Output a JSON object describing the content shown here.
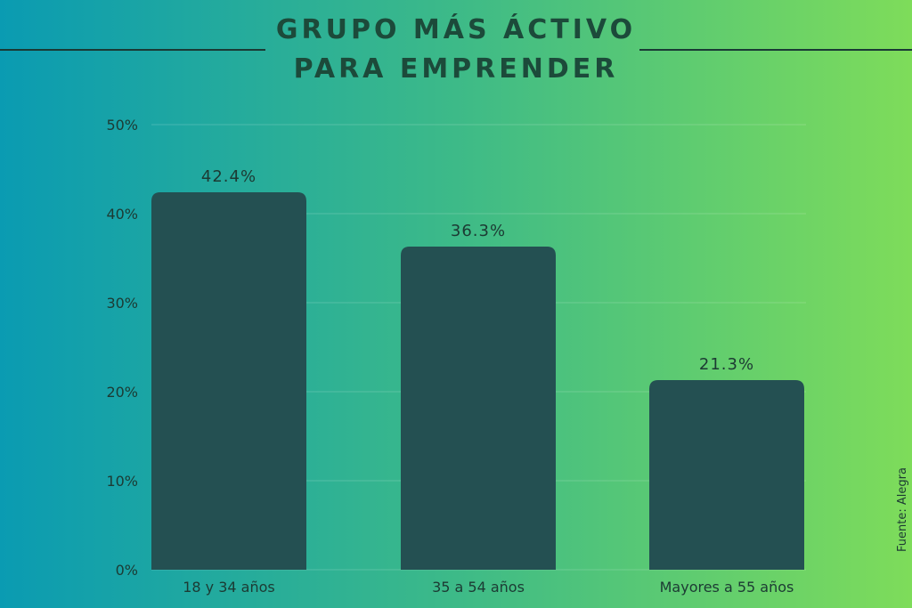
{
  "title_line1": "GRUPO MÁS ÁCTIVO",
  "title_line2": "PARA EMPRENDER",
  "source": "Fuente: Alegra",
  "chart_data": {
    "type": "bar",
    "categories": [
      "18 y 34 años",
      "35 a 54 años",
      "Mayores a 55 años"
    ],
    "values": [
      42.4,
      36.3,
      21.3
    ],
    "value_labels": [
      "42.4%",
      "36.3%",
      "21.3%"
    ],
    "ylim": [
      0,
      50
    ],
    "yticks": [
      "0%",
      "10%",
      "20%",
      "30%",
      "40%",
      "50%"
    ],
    "grid": true,
    "bar_color": "#245052",
    "title": "GRUPO MÁS ÁCTIVO PARA EMPRENDER"
  }
}
